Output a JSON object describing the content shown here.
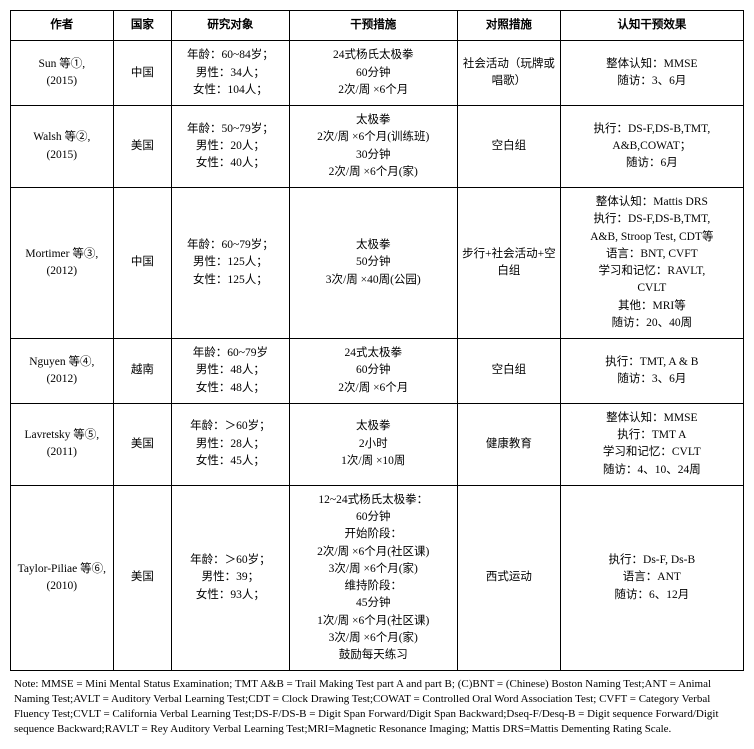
{
  "table": {
    "headers": [
      "作者",
      "国家",
      "研究对象",
      "干预措施",
      "对照措施",
      "认知干预效果"
    ],
    "rows": [
      {
        "author": "Sun 等①,\n(2015)",
        "country": "中国",
        "subjects": "年龄：60~84岁；\n男性：34人；\n女性：104人；",
        "intervention": "24式杨氏太极拳\n60分钟\n2次/周 ×6个月",
        "control": "社会活动（玩牌或唱歌）",
        "outcome": "整体认知：MMSE\n随访：3、6月"
      },
      {
        "author": "Walsh 等②,\n(2015)",
        "country": "美国",
        "subjects": "年龄：50~79岁；\n男性：20人；\n女性：40人；",
        "intervention": "太极拳\n2次/周 ×6个月(训练班)\n30分钟\n2次/周 ×6个月(家)",
        "control": "空白组",
        "outcome": "执行：DS-F,DS-B,TMT,\nA&B,COWAT；\n随访：6月"
      },
      {
        "author": "Mortimer 等③,\n(2012)",
        "country": "中国",
        "subjects": "年龄：60~79岁；\n男性：125人；\n女性：125人；",
        "intervention": "太极拳\n50分钟\n3次/周 ×40周(公园)",
        "control": "步行+社会活动+空白组",
        "outcome": "整体认知：Mattis DRS\n执行：DS-F,DS-B,TMT,\nA&B, Stroop Test, CDT等\n语言：BNT, CVFT\n学习和记忆：RAVLT,\nCVLT\n其他：MRI等\n随访：20、40周"
      },
      {
        "author": "Nguyen 等④,\n(2012)",
        "country": "越南",
        "subjects": "年龄：60~79岁\n男性：48人；\n女性：48人；",
        "intervention": "24式太极拳\n60分钟\n2次/周 ×6个月",
        "control": "空白组",
        "outcome": "执行：TMT, A & B\n随访：3、6月"
      },
      {
        "author": "Lavretsky 等⑤,\n(2011)",
        "country": "美国",
        "subjects": "年龄：＞60岁；\n男性：28人；\n女性：45人；",
        "intervention": "太极拳\n2小时\n1次/周 ×10周",
        "control": "健康教育",
        "outcome": "整体认知：MMSE\n执行：TMT A\n学习和记忆：CVLT\n随访：4、10、24周"
      },
      {
        "author": "Taylor-Piliae 等⑥,\n(2010)",
        "country": "美国",
        "subjects": "年龄：＞60岁；\n男性：39；\n女性：93人；",
        "intervention": "12~24式杨氏太极拳：\n60分钟\n开始阶段：\n2次/周 ×6个月(社区课)\n3次/周 ×6个月(家)\n维持阶段：\n45分钟\n1次/周 ×6个月(社区课)\n3次/周 ×6个月(家)\n鼓励每天练习",
        "control": "西式运动",
        "outcome": "执行：Ds-F, Ds-B\n语言：ANT\n随访：6、12月"
      }
    ],
    "note": "Note: MMSE = Mini Mental Status Examination; TMT A&B = Trail Making Test part A and part B; (C)BNT = (Chinese) Boston Naming Test;ANT = Animal Naming Test;AVLT = Auditory Verbal Learning Test;CDT = Clock Drawing Test;COWAT = Controlled Oral Word Association Test; CVFT = Category Verbal Fluency Test;CVLT = California Verbal Learning Test;DS-F/DS-B = Digit Span Forward/Digit Span Backward;Dseq-F/Desq-B = Digit sequence Forward/Digit sequence Backward;RAVLT = Rey Auditory Verbal Learning Test;MRI=Magnetic Resonance Imaging; Mattis DRS=Mattis Dementing Rating Scale."
  }
}
